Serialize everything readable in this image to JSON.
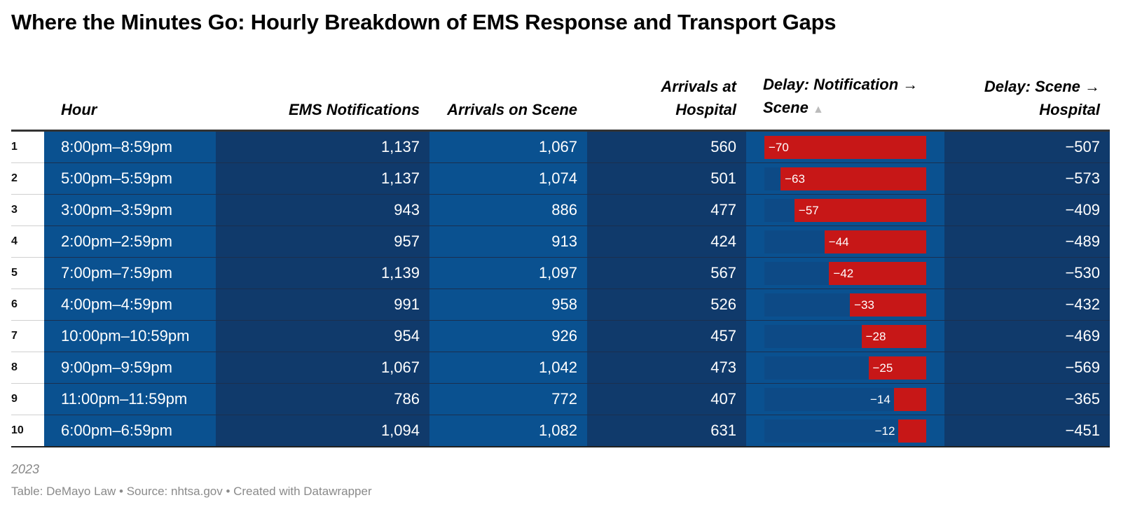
{
  "title": "Where the Minutes Go: Hourly Breakdown of EMS Response and Transport Gaps",
  "headers": {
    "hour": "Hour",
    "notifications": "EMS Notifications",
    "arrivals_scene": "Arrivals on Scene",
    "arrivals_hospital": "Arrivals at Hospital",
    "delay_scene": "Delay: Notification → Scene",
    "delay_hospital": "Delay: Scene → Hospital",
    "sort_indicator": "▲"
  },
  "colors": {
    "bar": "#c71717",
    "track": "#0d4a86",
    "cell_light": "#0a5190",
    "cell_dark": "#103a6b"
  },
  "chart_data": {
    "type": "table",
    "title": "Where the Minutes Go: Hourly Breakdown of EMS Response and Transport Gaps",
    "columns": [
      "Hour",
      "EMS Notifications",
      "Arrivals on Scene",
      "Arrivals at Hospital",
      "Delay: Notification → Scene",
      "Delay: Scene → Hospital"
    ],
    "bar_column_range": [
      -70,
      0
    ],
    "rows": [
      {
        "rank": "1",
        "hour": "8:00pm–8:59pm",
        "notifications": "1,137",
        "arrivals_scene": "1,067",
        "arrivals_hospital": "560",
        "delay_scene": -70,
        "delay_scene_label": "−70",
        "delay_hospital": "−507"
      },
      {
        "rank": "2",
        "hour": "5:00pm–5:59pm",
        "notifications": "1,137",
        "arrivals_scene": "1,074",
        "arrivals_hospital": "501",
        "delay_scene": -63,
        "delay_scene_label": "−63",
        "delay_hospital": "−573"
      },
      {
        "rank": "3",
        "hour": "3:00pm–3:59pm",
        "notifications": "943",
        "arrivals_scene": "886",
        "arrivals_hospital": "477",
        "delay_scene": -57,
        "delay_scene_label": "−57",
        "delay_hospital": "−409"
      },
      {
        "rank": "4",
        "hour": "2:00pm–2:59pm",
        "notifications": "957",
        "arrivals_scene": "913",
        "arrivals_hospital": "424",
        "delay_scene": -44,
        "delay_scene_label": "−44",
        "delay_hospital": "−489"
      },
      {
        "rank": "5",
        "hour": "7:00pm–7:59pm",
        "notifications": "1,139",
        "arrivals_scene": "1,097",
        "arrivals_hospital": "567",
        "delay_scene": -42,
        "delay_scene_label": "−42",
        "delay_hospital": "−530"
      },
      {
        "rank": "6",
        "hour": "4:00pm–4:59pm",
        "notifications": "991",
        "arrivals_scene": "958",
        "arrivals_hospital": "526",
        "delay_scene": -33,
        "delay_scene_label": "−33",
        "delay_hospital": "−432"
      },
      {
        "rank": "7",
        "hour": "10:00pm–10:59pm",
        "notifications": "954",
        "arrivals_scene": "926",
        "arrivals_hospital": "457",
        "delay_scene": -28,
        "delay_scene_label": "−28",
        "delay_hospital": "−469"
      },
      {
        "rank": "8",
        "hour": "9:00pm–9:59pm",
        "notifications": "1,067",
        "arrivals_scene": "1,042",
        "arrivals_hospital": "473",
        "delay_scene": -25,
        "delay_scene_label": "−25",
        "delay_hospital": "−569"
      },
      {
        "rank": "9",
        "hour": "11:00pm–11:59pm",
        "notifications": "786",
        "arrivals_scene": "772",
        "arrivals_hospital": "407",
        "delay_scene": -14,
        "delay_scene_label": "−14",
        "delay_hospital": "−365"
      },
      {
        "rank": "10",
        "hour": "6:00pm–6:59pm",
        "notifications": "1,094",
        "arrivals_scene": "1,082",
        "arrivals_hospital": "631",
        "delay_scene": -12,
        "delay_scene_label": "−12",
        "delay_hospital": "−451"
      }
    ]
  },
  "notes": "2023",
  "footer": "Table: DeMayo Law • Source: nhtsa.gov • Created with Datawrapper"
}
